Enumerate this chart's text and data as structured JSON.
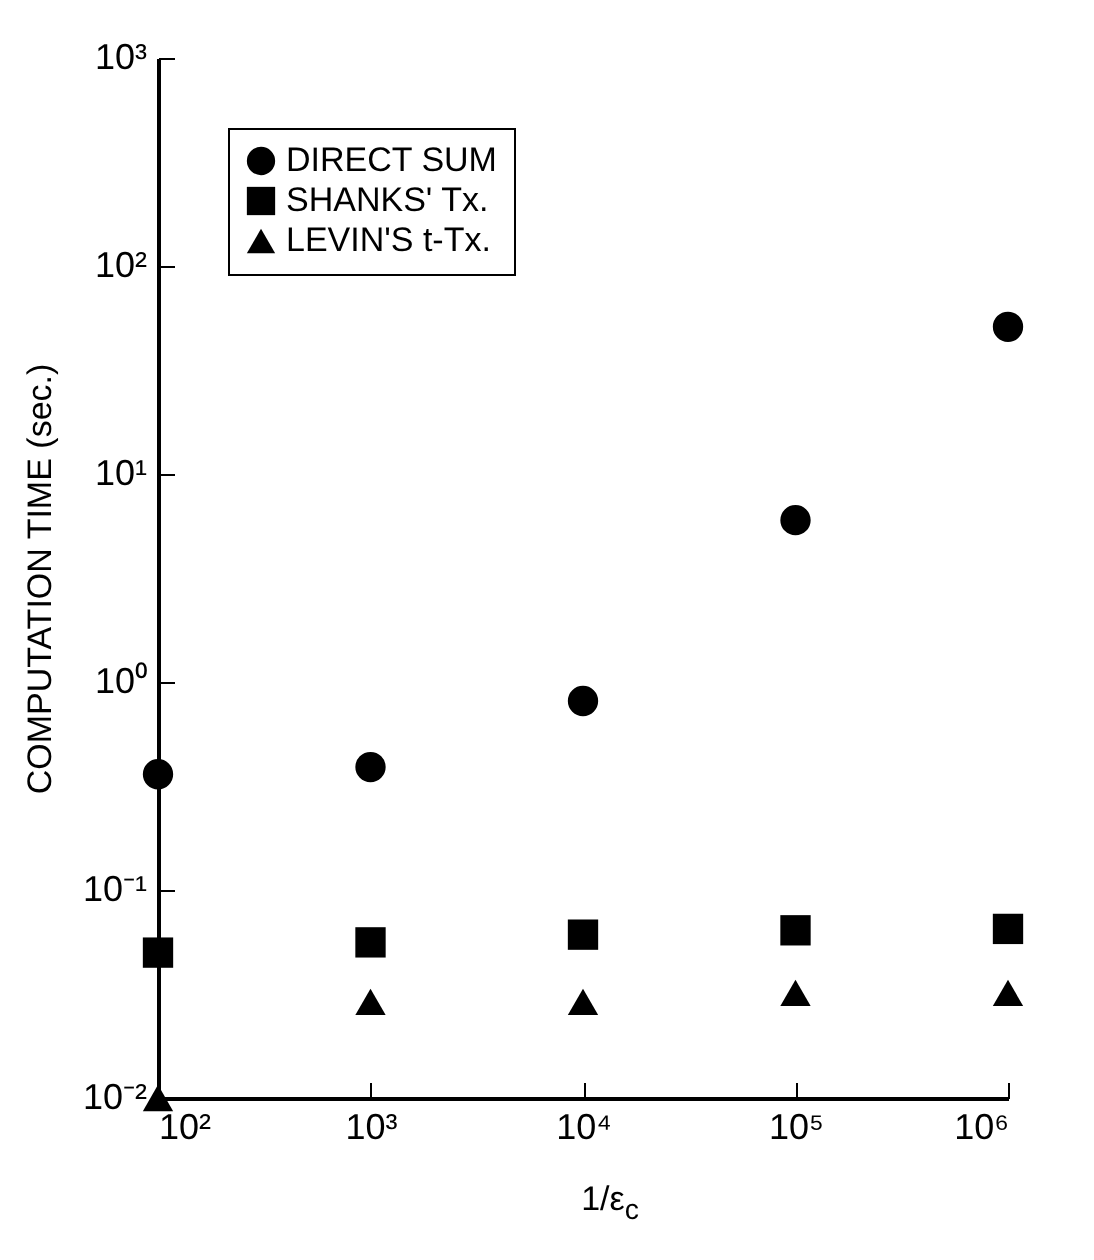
{
  "chart_data": {
    "type": "scatter",
    "xlabel": "1/ε$_{c}$",
    "ylabel": "COMPUTATION TIME (sec.)",
    "log": "xy",
    "legend": "top left",
    "grid": false,
    "x": [
      100,
      1000,
      10000,
      100000,
      1000000
    ],
    "xlim": [
      100,
      1000000
    ],
    "xticks": [
      {
        "value": 100,
        "label": "10²"
      },
      {
        "value": 1000,
        "label": "10³"
      },
      {
        "value": 10000,
        "label": "10⁴"
      },
      {
        "value": 100000,
        "label": "10⁵"
      },
      {
        "value": 1000000,
        "label": "10⁶"
      }
    ],
    "ylim": [
      0.01,
      1000
    ],
    "yticks": [
      {
        "value": 0.01,
        "label": "10⁻²"
      },
      {
        "value": 0.1,
        "label": "10⁻¹"
      },
      {
        "value": 1,
        "label": "10⁰"
      },
      {
        "value": 10,
        "label": "10¹"
      },
      {
        "value": 100,
        "label": "10²"
      },
      {
        "value": 1000,
        "label": "10³"
      }
    ],
    "series": [
      {
        "name": "DIRECT SUM",
        "color": "#000000",
        "marker": "circle",
        "values": [
          0.36,
          0.39,
          0.81,
          6,
          51
        ]
      },
      {
        "name": "SHANKS' Tx.",
        "color": "#000000",
        "marker": "square",
        "values": [
          0.05,
          0.056,
          0.061,
          0.064,
          0.065
        ]
      },
      {
        "name": "LEVIN'S t-Tx.",
        "color": "#000000",
        "marker": "triangle",
        "values": [
          0.01,
          0.029,
          0.029,
          0.032,
          0.032
        ]
      }
    ]
  }
}
